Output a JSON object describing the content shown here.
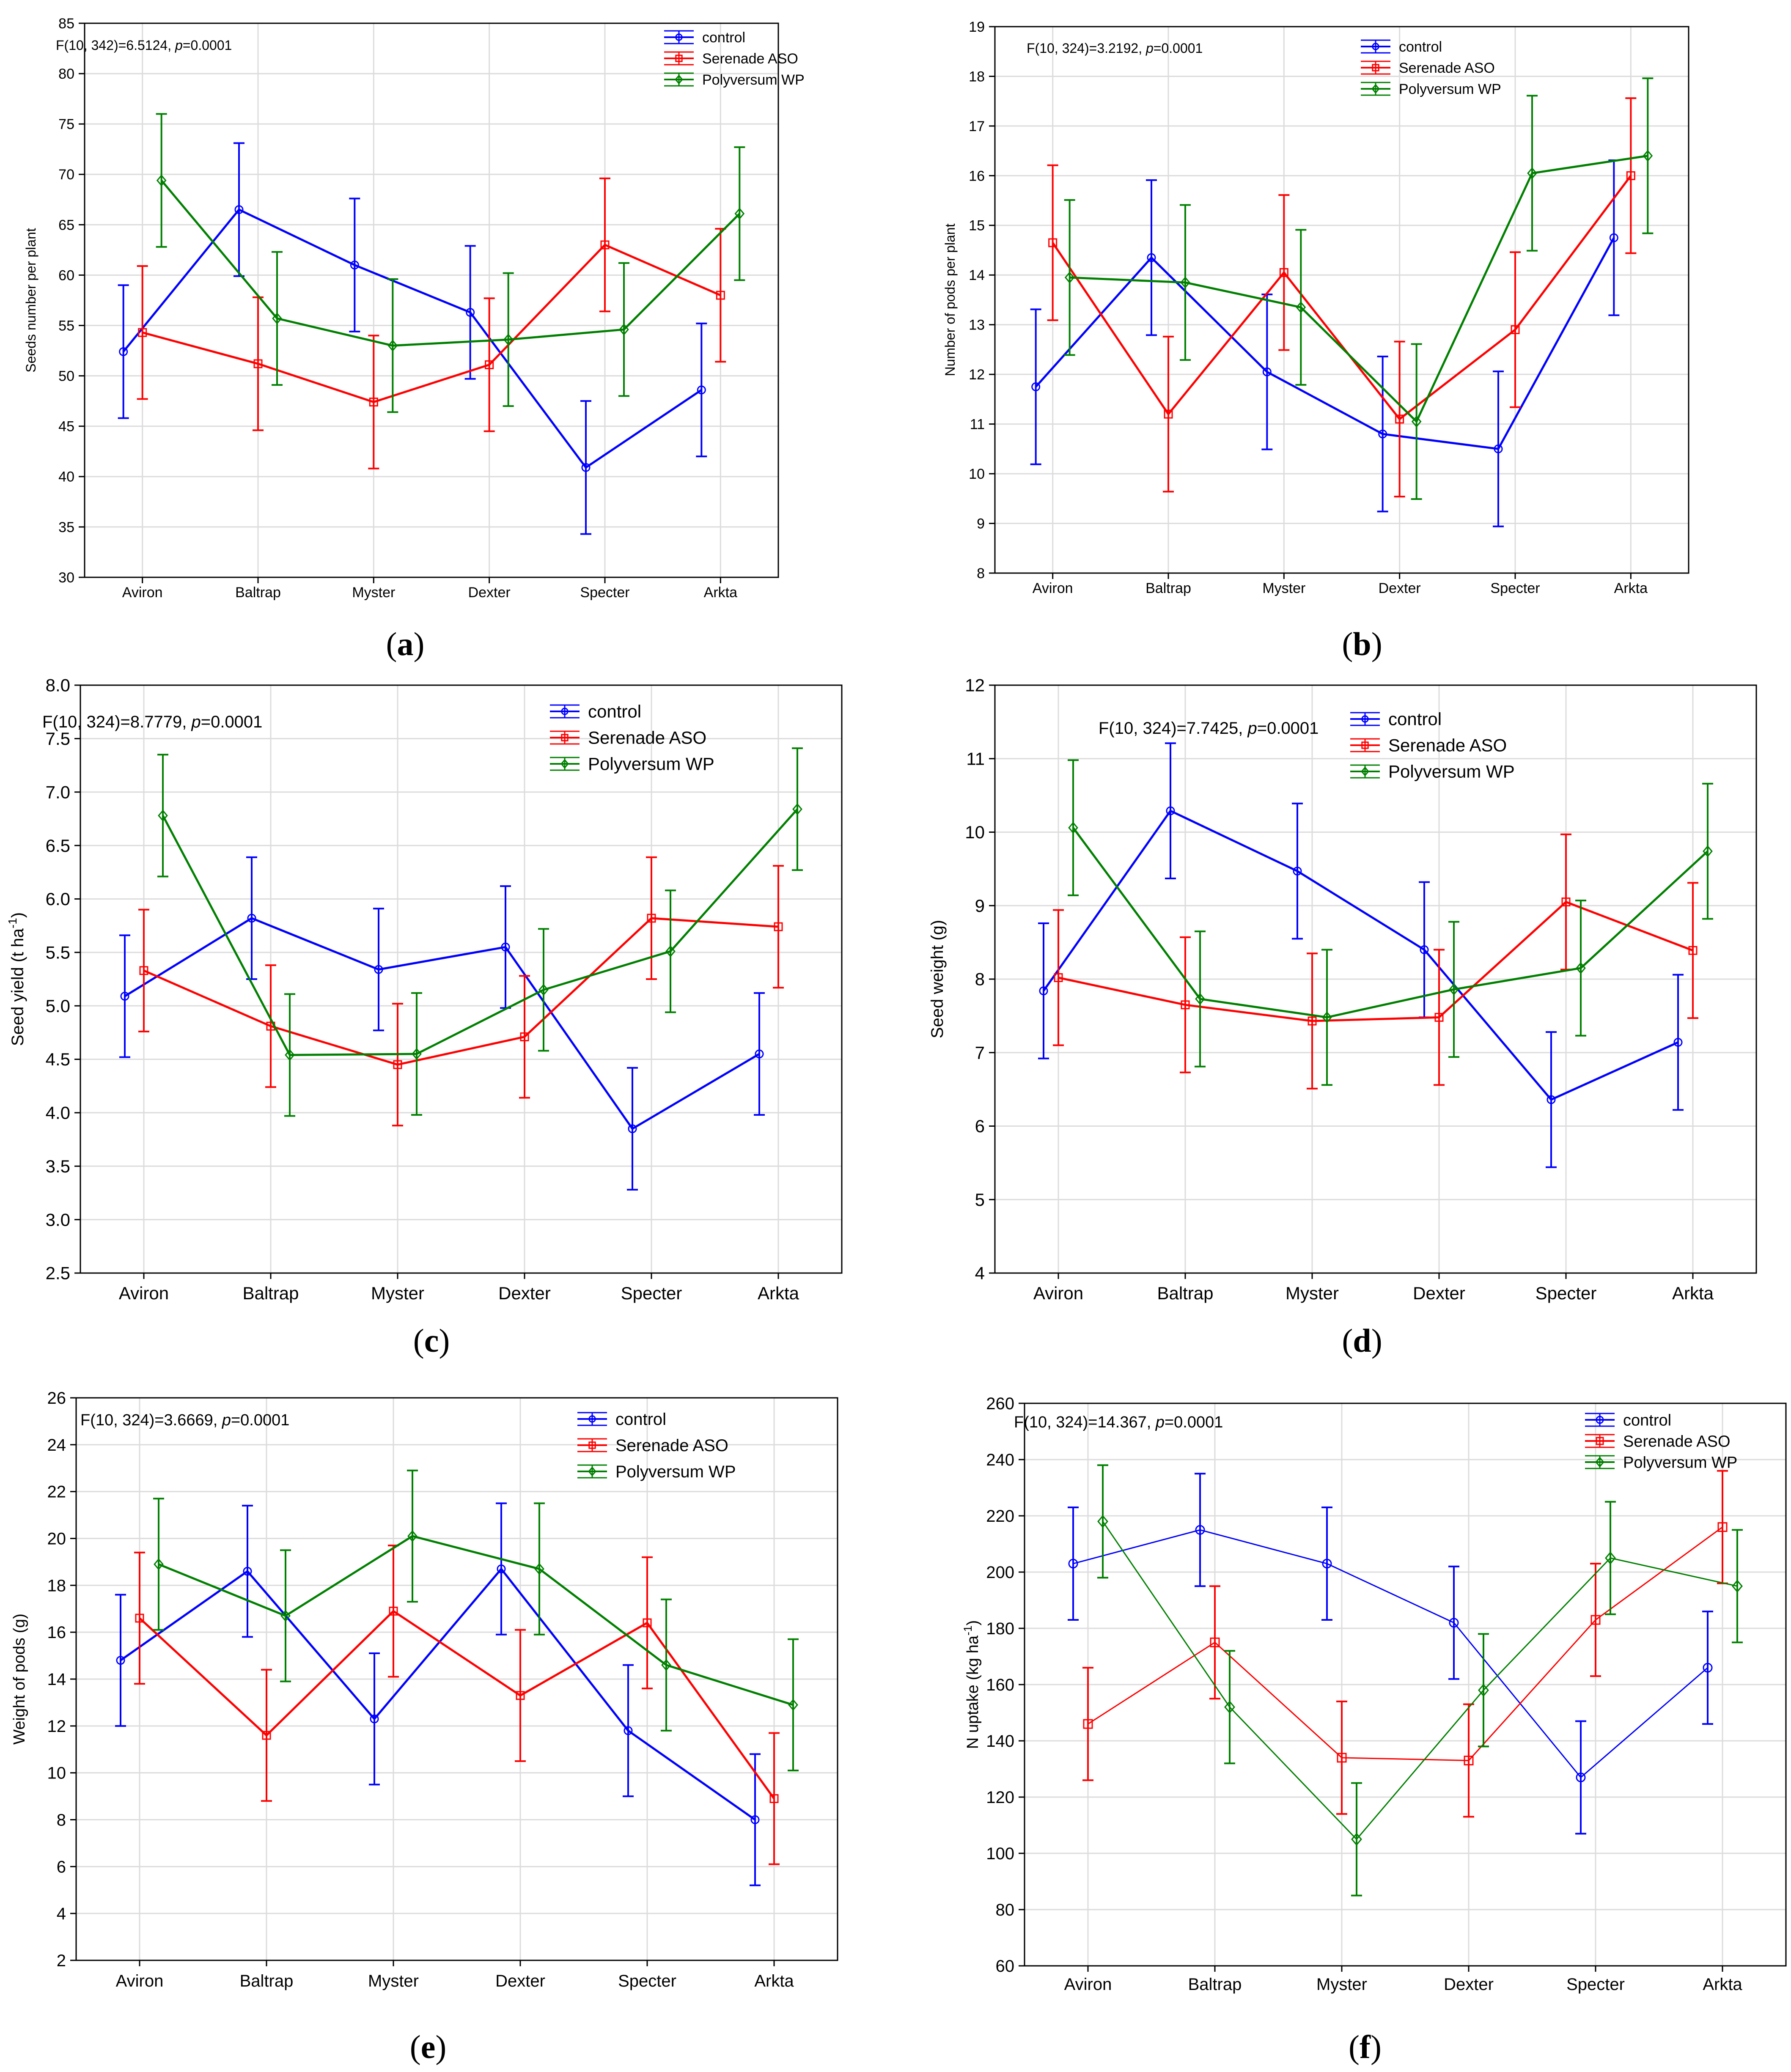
{
  "chart_data": [
    {
      "id": "a",
      "type": "line",
      "panel_label": "a",
      "stat_text": {
        "pre": "F(10, 342)=6.5124, ",
        "p": "p",
        "post": "=0.0001"
      },
      "ylabel": "Seeds number per plant",
      "xlabel": "",
      "ylim": [
        30,
        85
      ],
      "yticks": [
        30,
        35,
        40,
        45,
        50,
        55,
        60,
        65,
        70,
        75,
        80,
        85
      ],
      "categories": [
        "Aviron",
        "Baltrap",
        "Myster",
        "Dexter",
        "Specter",
        "Arkta"
      ],
      "series": [
        {
          "name": "control",
          "color": "#0000ff",
          "marker": "circle",
          "values": [
            52.4,
            66.5,
            61.0,
            56.3,
            40.9,
            48.6
          ],
          "errors": [
            6.6,
            6.6,
            6.6,
            6.6,
            6.6,
            6.6
          ]
        },
        {
          "name": "Serenade ASO",
          "color": "#ff0000",
          "marker": "square",
          "values": [
            54.3,
            51.2,
            47.4,
            51.1,
            63.0,
            58.0
          ],
          "errors": [
            6.6,
            6.6,
            6.6,
            6.6,
            6.6,
            6.6
          ]
        },
        {
          "name": "Polyversum WP",
          "color": "#008000",
          "marker": "diamond",
          "values": [
            69.4,
            55.7,
            53.0,
            53.6,
            54.6,
            66.1
          ],
          "errors": [
            6.6,
            6.6,
            6.6,
            6.6,
            6.6,
            6.6
          ]
        }
      ]
    },
    {
      "id": "b",
      "type": "line",
      "panel_label": "b",
      "stat_text": {
        "pre": "F(10, 324)=3.2192, ",
        "p": "p",
        "post": "=0.0001"
      },
      "ylabel": "Number of pods per plant",
      "xlabel": "",
      "ylim": [
        8,
        19
      ],
      "yticks": [
        8,
        9,
        10,
        11,
        12,
        13,
        14,
        15,
        16,
        17,
        18,
        19
      ],
      "categories": [
        "Aviron",
        "Baltrap",
        "Myster",
        "Dexter",
        "Specter",
        "Arkta"
      ],
      "series": [
        {
          "name": "control",
          "color": "#0000ff",
          "marker": "circle",
          "values": [
            11.75,
            14.35,
            12.05,
            10.8,
            10.5,
            14.75
          ],
          "errors": [
            1.56,
            1.56,
            1.56,
            1.56,
            1.56,
            1.56
          ]
        },
        {
          "name": "Serenade ASO",
          "color": "#ff0000",
          "marker": "square",
          "values": [
            14.65,
            11.2,
            14.05,
            11.1,
            12.9,
            16.0
          ],
          "errors": [
            1.56,
            1.56,
            1.56,
            1.56,
            1.56,
            1.56
          ]
        },
        {
          "name": "Polyversum WP",
          "color": "#008000",
          "marker": "diamond",
          "values": [
            13.95,
            13.85,
            13.35,
            11.05,
            16.05,
            16.4
          ],
          "errors": [
            1.56,
            1.56,
            1.56,
            1.56,
            1.56,
            1.56
          ]
        }
      ]
    },
    {
      "id": "c",
      "type": "line",
      "panel_label": "c",
      "stat_text": {
        "pre": "F(10, 324)=8.7779, ",
        "p": "p",
        "post": "=0.0001"
      },
      "ylabel_pre": "Seed yield (t ha",
      "ylabel_sup": "-1",
      "ylabel_post": ")",
      "xlabel": "",
      "ylim": [
        2.5,
        8.0
      ],
      "yticks": [
        2.5,
        3.0,
        3.5,
        4.0,
        4.5,
        5.0,
        5.5,
        6.0,
        6.5,
        7.0,
        7.5,
        8.0
      ],
      "categories": [
        "Aviron",
        "Baltrap",
        "Myster",
        "Dexter",
        "Specter",
        "Arkta"
      ],
      "series": [
        {
          "name": "control",
          "color": "#0000ff",
          "marker": "circle",
          "values": [
            5.09,
            5.82,
            5.34,
            5.55,
            3.85,
            4.55
          ],
          "errors": [
            0.57,
            0.57,
            0.57,
            0.57,
            0.57,
            0.57
          ]
        },
        {
          "name": "Serenade ASO",
          "color": "#ff0000",
          "marker": "square",
          "values": [
            5.33,
            4.81,
            4.45,
            4.71,
            5.82,
            5.74
          ],
          "errors": [
            0.57,
            0.57,
            0.57,
            0.57,
            0.57,
            0.57
          ]
        },
        {
          "name": "Polyversum WP",
          "color": "#008000",
          "marker": "diamond",
          "values": [
            6.78,
            4.54,
            4.55,
            5.15,
            5.51,
            6.84
          ],
          "errors": [
            0.57,
            0.57,
            0.57,
            0.57,
            0.57,
            0.57
          ]
        }
      ]
    },
    {
      "id": "d",
      "type": "line",
      "panel_label": "d",
      "stat_text": {
        "pre": "F(10, 324)=7.7425, ",
        "p": "p",
        "post": "=0.0001"
      },
      "ylabel": "Seed weight (g)",
      "xlabel": "",
      "ylim": [
        4,
        12
      ],
      "yticks": [
        4,
        5,
        6,
        7,
        8,
        9,
        10,
        11,
        12
      ],
      "categories": [
        "Aviron",
        "Baltrap",
        "Myster",
        "Dexter",
        "Specter",
        "Arkta"
      ],
      "series": [
        {
          "name": "control",
          "color": "#0000ff",
          "marker": "circle",
          "values": [
            7.84,
            10.29,
            9.47,
            8.4,
            6.36,
            7.14
          ],
          "errors": [
            0.92,
            0.92,
            0.92,
            0.92,
            0.92,
            0.92
          ]
        },
        {
          "name": "Serenade ASO",
          "color": "#ff0000",
          "marker": "square",
          "values": [
            8.02,
            7.65,
            7.43,
            7.48,
            9.05,
            8.39
          ],
          "errors": [
            0.92,
            0.92,
            0.92,
            0.92,
            0.92,
            0.92
          ]
        },
        {
          "name": "Polyversum WP",
          "color": "#008000",
          "marker": "diamond",
          "values": [
            10.06,
            7.73,
            7.48,
            7.86,
            8.15,
            9.74
          ],
          "errors": [
            0.92,
            0.92,
            0.92,
            0.92,
            0.92,
            0.92
          ]
        }
      ]
    },
    {
      "id": "e",
      "type": "line",
      "panel_label": "e",
      "stat_text": {
        "pre": "F(10, 324)=3.6669, ",
        "p": "p",
        "post": "=0.0001"
      },
      "ylabel": "Weight of pods (g)",
      "xlabel": "",
      "ylim": [
        2,
        26
      ],
      "yticks": [
        2,
        4,
        6,
        8,
        10,
        12,
        14,
        16,
        18,
        20,
        22,
        24,
        26
      ],
      "categories": [
        "Aviron",
        "Baltrap",
        "Myster",
        "Dexter",
        "Specter",
        "Arkta"
      ],
      "series": [
        {
          "name": "control",
          "color": "#0000ff",
          "marker": "circle",
          "values": [
            14.8,
            18.6,
            12.3,
            18.7,
            11.8,
            8.0
          ],
          "errors": [
            2.8,
            2.8,
            2.8,
            2.8,
            2.8,
            2.8
          ]
        },
        {
          "name": "Serenade ASO",
          "color": "#ff0000",
          "marker": "square",
          "values": [
            16.6,
            11.6,
            16.9,
            13.3,
            16.4,
            8.9
          ],
          "errors": [
            2.8,
            2.8,
            2.8,
            2.8,
            2.8,
            2.8
          ]
        },
        {
          "name": "Polyversum WP",
          "color": "#008000",
          "marker": "diamond",
          "values": [
            18.9,
            16.7,
            20.1,
            18.7,
            14.6,
            12.9
          ],
          "errors": [
            2.8,
            2.8,
            2.8,
            2.8,
            2.8,
            2.8
          ]
        }
      ]
    },
    {
      "id": "f",
      "type": "line",
      "panel_label": "f",
      "stat_text": {
        "pre": "F(10, 324)=14.367, ",
        "p": "p",
        "post": "=0.0001"
      },
      "ylabel_pre": "N uptake (kg ha",
      "ylabel_sup": "-1",
      "ylabel_post": ")",
      "xlabel": "",
      "ylim": [
        60,
        260
      ],
      "yticks": [
        60,
        80,
        100,
        120,
        140,
        160,
        180,
        200,
        220,
        240,
        260
      ],
      "categories": [
        "Aviron",
        "Baltrap",
        "Myster",
        "Dexter",
        "Specter",
        "Arkta"
      ],
      "series": [
        {
          "name": "control",
          "color": "#0000ff",
          "marker": "circle",
          "values": [
            203,
            215,
            203,
            182,
            127,
            166
          ],
          "errors": [
            20,
            20,
            20,
            20,
            20,
            20
          ]
        },
        {
          "name": "Serenade ASO",
          "color": "#ff0000",
          "marker": "square",
          "values": [
            146,
            175,
            134,
            133,
            183,
            216
          ],
          "errors": [
            20,
            20,
            20,
            20,
            20,
            20
          ]
        },
        {
          "name": "Polyversum WP",
          "color": "#008000",
          "marker": "diamond",
          "values": [
            218,
            152,
            105,
            158,
            205,
            195
          ],
          "errors": [
            20,
            20,
            20,
            20,
            20,
            20
          ]
        }
      ]
    }
  ]
}
